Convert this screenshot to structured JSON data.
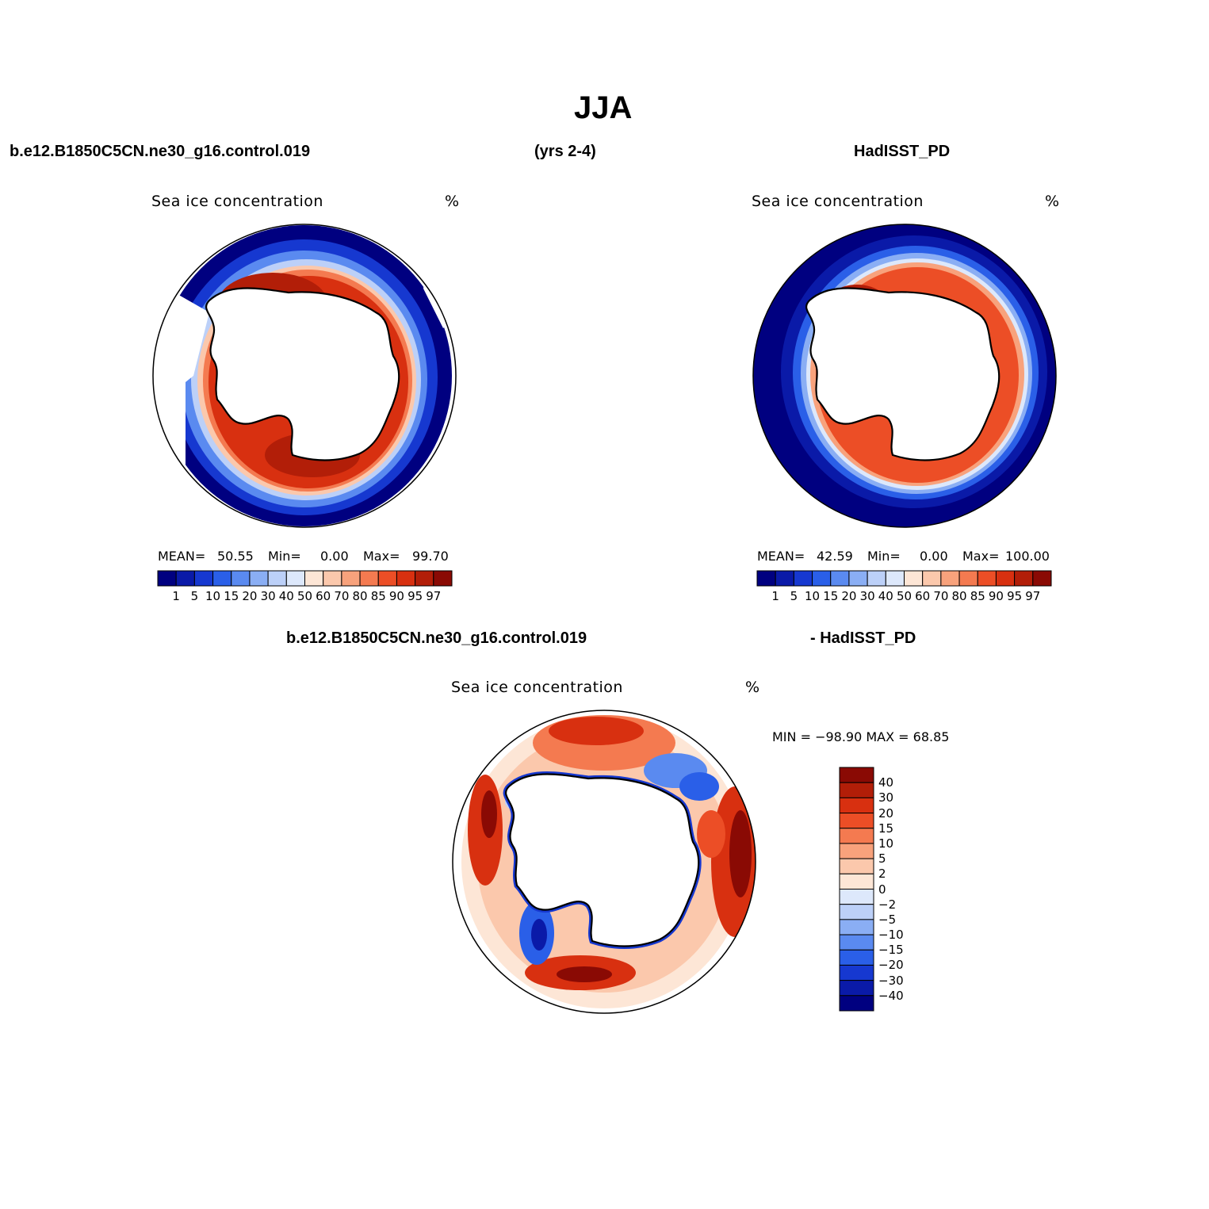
{
  "figure": {
    "title": "JJA",
    "case_name": "b.e12.B1850C5CN.ne30_g16.control.019",
    "years": "(yrs 2-4)",
    "obs_name": "HadISST_PD",
    "diff_left": "b.e12.B1850C5CN.ne30_g16.control.019",
    "diff_right": "- HadISST_PD"
  },
  "panels": {
    "model": {
      "variable": "Sea ice concentration",
      "units": "%",
      "mean_label": "MEAN=",
      "mean_value": "50.55",
      "min_label": "Min=",
      "min_value": "0.00",
      "max_label": "Max=",
      "max_value": "99.70"
    },
    "obs": {
      "variable": "Sea ice concentration",
      "units": "%",
      "mean_label": "MEAN=",
      "mean_value": "42.59",
      "min_label": "Min=",
      "min_value": "0.00",
      "max_label": "Max=",
      "max_value": "100.00"
    },
    "diff": {
      "variable": "Sea ice concentration",
      "units": "%",
      "minmax": "MIN = −98.90  MAX =   68.85"
    }
  },
  "colorbar_abs": {
    "ticks": [
      "1",
      "5",
      "10",
      "15",
      "20",
      "30",
      "40",
      "50",
      "60",
      "70",
      "80",
      "85",
      "90",
      "95",
      "97"
    ],
    "colors": [
      "#000080",
      "#0a1aa8",
      "#1638d0",
      "#2a5fe8",
      "#5a8af0",
      "#8aaef4",
      "#bcd0f8",
      "#dde8fb",
      "#fde6d6",
      "#fbc8ac",
      "#f8a27c",
      "#f47a50",
      "#ec4e26",
      "#d83010",
      "#b21e08",
      "#8a0a04"
    ]
  },
  "colorbar_diff": {
    "ticks": [
      "40",
      "30",
      "20",
      "15",
      "10",
      "5",
      "2",
      "0",
      "−2",
      "−5",
      "−10",
      "−15",
      "−20",
      "−30",
      "−40"
    ],
    "colors": [
      "#8a0a04",
      "#b21e08",
      "#d83010",
      "#ec4e26",
      "#f47a50",
      "#f8a27c",
      "#fbc8ac",
      "#fde6d6",
      "#dde8fb",
      "#bcd0f8",
      "#8aaef4",
      "#5a8af0",
      "#2a5fe8",
      "#1638d0",
      "#0a1aa8",
      "#000080"
    ]
  }
}
